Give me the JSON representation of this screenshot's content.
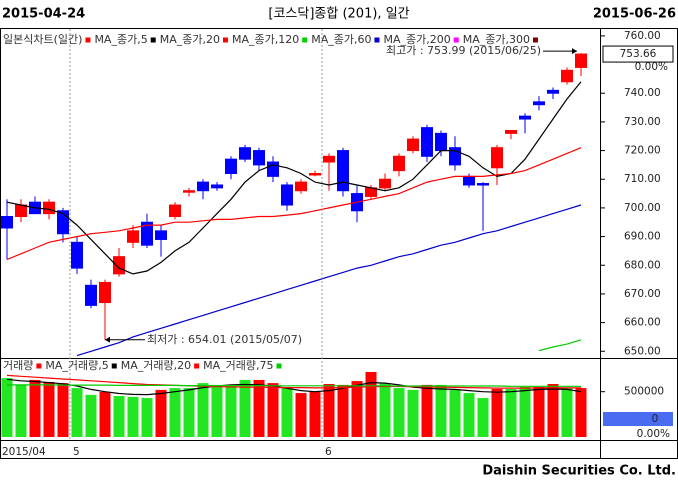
{
  "header": {
    "start_date": "2015-04-24",
    "title": "[코스닥]종합 (201), 일간",
    "end_date": "2015-06-26"
  },
  "chart_data": [
    {
      "type": "candlestick",
      "legend_title": "일본식차트(일간)",
      "legend_color": "#ff0000",
      "up_color": "#ff0000",
      "down_color": "#0000ff",
      "open": [
        697,
        697,
        702,
        698,
        699,
        688,
        673,
        667,
        677,
        688,
        695,
        692,
        697,
        705.5,
        709,
        708,
        717,
        721,
        720,
        716,
        708,
        706,
        711.5,
        716,
        720,
        705,
        704,
        707,
        713,
        720,
        728,
        726,
        721,
        711,
        708.5,
        714,
        726,
        732,
        737,
        741,
        744,
        749
      ],
      "high": [
        703,
        703,
        704,
        703,
        700,
        690,
        675,
        675,
        686,
        694,
        698,
        694,
        702,
        707,
        710,
        709,
        718,
        722,
        721,
        718,
        709,
        710,
        713,
        719,
        721,
        708,
        708,
        712,
        719,
        725,
        729,
        727,
        725,
        712,
        709,
        722,
        727,
        733,
        739,
        742,
        749,
        753.99
      ],
      "low": [
        682,
        695,
        698,
        696,
        688,
        677,
        665,
        654.01,
        676,
        686,
        686,
        683,
        696,
        704,
        703,
        706,
        710,
        716,
        713,
        709,
        699,
        705,
        711,
        706,
        704,
        695,
        703,
        706,
        711,
        719,
        716,
        718,
        713,
        707,
        692,
        708,
        724,
        726,
        734,
        738,
        743,
        746
      ],
      "close": [
        693,
        701,
        698,
        702,
        691,
        679,
        666,
        674,
        683,
        692,
        687,
        689,
        701,
        706,
        706,
        707,
        712,
        717,
        715,
        711,
        701,
        709,
        712,
        718,
        706,
        699,
        707,
        710,
        718,
        724,
        718,
        720,
        715,
        708,
        708,
        721,
        727,
        731,
        736,
        740,
        748,
        753.66
      ],
      "series": [
        {
          "name": "MA_종가,5",
          "color": "#000000",
          "values": [
            702,
            701,
            700,
            699.5,
            698,
            694,
            689,
            684,
            679,
            677,
            678,
            681,
            685,
            688,
            693,
            698,
            703,
            709,
            713,
            715,
            714,
            712,
            709,
            708,
            709,
            708,
            707,
            706,
            707,
            710,
            715,
            720,
            720,
            718,
            714,
            711,
            712,
            717,
            724,
            731,
            738,
            744
          ]
        },
        {
          "name": "MA_종가,20",
          "color": "#ff0000",
          "values": [
            682,
            684,
            686,
            688,
            689,
            690,
            691,
            691.5,
            692,
            693,
            694,
            694,
            695,
            695,
            695.5,
            696,
            696,
            696.5,
            697,
            697,
            697.5,
            698,
            699,
            700,
            701,
            702,
            703,
            704,
            705,
            707,
            709,
            710,
            711,
            711,
            711,
            711.5,
            712,
            713,
            715,
            717,
            719,
            721
          ]
        },
        {
          "name": "MA_종가,120",
          "color": "#00cc00",
          "values": [
            null,
            null,
            null,
            null,
            null,
            null,
            null,
            null,
            null,
            null,
            null,
            null,
            null,
            null,
            null,
            null,
            null,
            null,
            null,
            null,
            null,
            null,
            null,
            null,
            null,
            null,
            null,
            null,
            null,
            null,
            null,
            null,
            null,
            null,
            null,
            null,
            null,
            null,
            650.2,
            651.5,
            652.5,
            654
          ]
        },
        {
          "name": "MA_종가,60",
          "color": "#0000cc",
          "values": [
            null,
            null,
            null,
            null,
            null,
            648.5,
            650,
            651.5,
            653,
            655,
            656.5,
            658,
            659.5,
            661,
            662.5,
            664,
            665.5,
            667,
            668.5,
            670,
            671.5,
            673,
            674.5,
            676,
            677.5,
            679,
            680,
            681.5,
            683,
            684,
            685.5,
            687,
            688,
            689.5,
            691,
            692,
            693.5,
            695,
            696.5,
            698,
            699.5,
            701
          ]
        },
        {
          "name": "MA_종가,200",
          "color": "#ff00ff"
        },
        {
          "name": "MA_종가,300",
          "color": "#800000"
        }
      ],
      "high_label": "최고가 : 753.99 (2015/06/25)",
      "low_label": "최저가 : 654.01 (2015/05/07)",
      "last": 753.66,
      "change_label": "0.00%",
      "ylim": [
        648,
        762.4
      ],
      "yticks": [
        {
          "value": 760,
          "label": "760.00"
        },
        {
          "value": 740,
          "label": "740.00"
        },
        {
          "value": 730,
          "label": "730.00"
        },
        {
          "value": 720,
          "label": "720.00"
        },
        {
          "value": 710,
          "label": "710.00"
        },
        {
          "value": 700,
          "label": "700.00"
        },
        {
          "value": 690,
          "label": "690.00"
        },
        {
          "value": 680,
          "label": "680.00"
        },
        {
          "value": 670,
          "label": "670.00"
        },
        {
          "value": 660,
          "label": "660.00"
        },
        {
          "value": 650,
          "label": "650.00"
        }
      ]
    },
    {
      "type": "bar",
      "legend_title": "거래량",
      "legend_color": "#ff0000",
      "categories": [
        "2015/04",
        null,
        null,
        null,
        null,
        "5",
        null,
        null,
        null,
        null,
        null,
        null,
        null,
        null,
        null,
        null,
        null,
        null,
        null,
        null,
        null,
        null,
        null,
        "6",
        null,
        null,
        null,
        null,
        null,
        null,
        null,
        null,
        null,
        null,
        null,
        null,
        null,
        null,
        null,
        null,
        null,
        null
      ],
      "values": [
        560000,
        530000,
        552000,
        543000,
        538000,
        516000,
        486000,
        499000,
        481000,
        477000,
        472000,
        508000,
        516000,
        516000,
        538000,
        530000,
        530000,
        552000,
        552000,
        538000,
        521000,
        494000,
        499000,
        534000,
        530000,
        547000,
        587000,
        538000,
        516000,
        508000,
        530000,
        530000,
        508000,
        494000,
        472000,
        512000,
        512000,
        521000,
        521000,
        534000,
        516000,
        516000
      ],
      "colors": [
        "#22e622",
        "#22e622",
        "#ff0000",
        "#ff0000",
        "#ff0000",
        "#22e622",
        "#22e622",
        "#ff0000",
        "#22e622",
        "#22e622",
        "#22e622",
        "#ff0000",
        "#22e622",
        "#22e622",
        "#22e622",
        "#22e622",
        "#22e622",
        "#22e622",
        "#ff0000",
        "#ff0000",
        "#22e622",
        "#ff0000",
        "#ff0000",
        "#ff0000",
        "#ff0000",
        "#ff0000",
        "#ff0000",
        "#22e622",
        "#22e622",
        "#22e622",
        "#ff0000",
        "#22e622",
        "#22e622",
        "#22e622",
        "#22e622",
        "#ff0000",
        "#22e622",
        "#22e622",
        "#ff0000",
        "#ff0000",
        "#22e622",
        "#ff0000"
      ],
      "series": [
        {
          "name": "MA_거래량,5",
          "color": "#000000",
          "values": [
            555000,
            548000,
            545000,
            540000,
            535000,
            525000,
            510000,
            500000,
            492000,
            488000,
            487000,
            492000,
            500000,
            508000,
            518000,
            525000,
            530000,
            532000,
            530000,
            525000,
            515000,
            505000,
            500000,
            505000,
            515000,
            528000,
            540000,
            538000,
            530000,
            520000,
            515000,
            512000,
            510000,
            505000,
            500000,
            498000,
            500000,
            505000,
            510000,
            512000,
            510000,
            500000
          ]
        },
        {
          "name": "MA_거래량,20",
          "color": "#ff0000",
          "values": [
            572000,
            568000,
            564000,
            560000,
            556000,
            552000,
            548000,
            544000,
            540000,
            536000,
            532000,
            530000,
            528000,
            526000,
            524000,
            522000,
            521000,
            520000,
            520000,
            519000,
            518000,
            518000,
            517000,
            517000,
            518000,
            520000,
            522000,
            523000,
            523000,
            522000,
            521000,
            520000,
            519000,
            518000,
            517000,
            516000,
            516000,
            516000,
            517000,
            517000,
            517000,
            517000
          ]
        },
        {
          "name": "MA_거래량,75",
          "color": "#00cc00",
          "values": [
            530000,
            530000,
            530000,
            530000,
            529000,
            529000,
            529000,
            529000,
            528000,
            528000,
            528000,
            528000,
            528000,
            527000,
            527000,
            527000,
            527000,
            527000,
            527000,
            526000,
            526000,
            526000,
            526000,
            526000,
            526000,
            526000,
            526000,
            526000,
            525000,
            525000,
            525000,
            525000,
            525000,
            525000,
            525000,
            525000,
            524000,
            524000,
            524000,
            524000,
            524000,
            524000
          ]
        }
      ],
      "last_label": "0",
      "change_label": "0.00%",
      "ylim": [
        300000,
        640000
      ],
      "yticks": [
        500000
      ]
    }
  ],
  "footer": "Daishin Securities Co. Ltd."
}
